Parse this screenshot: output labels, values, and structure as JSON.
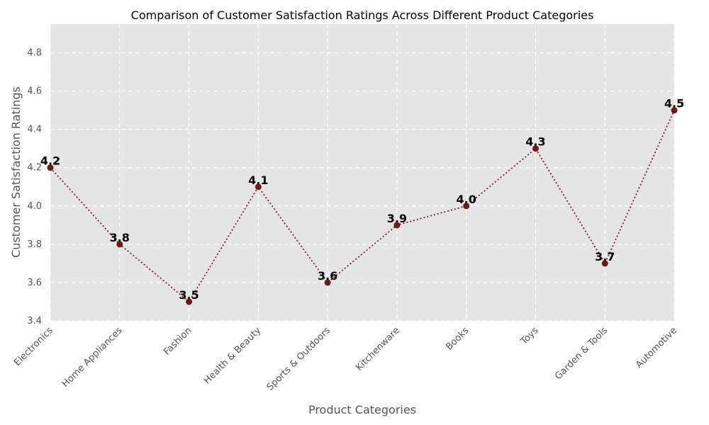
{
  "chart_data": {
    "type": "line",
    "title": "Comparison of Customer Satisfaction Ratings Across Different Product Categories",
    "xlabel": "Product Categories",
    "ylabel": "Customer Satisfaction Ratings",
    "categories": [
      "Electronics",
      "Home Appliances",
      "Fashion",
      "Health & Beauty",
      "Sports & Outdoors",
      "Kitchenware",
      "Books",
      "Toys",
      "Garden & Tools",
      "Automotive"
    ],
    "series": [
      {
        "values": [
          4.2,
          3.8,
          3.5,
          4.1,
          3.6,
          3.9,
          4.0,
          4.3,
          3.7,
          4.5
        ]
      }
    ],
    "data_labels": [
      "4.2",
      "3.8",
      "3.5",
      "4.1",
      "3.6",
      "3.9",
      "4.0",
      "4.3",
      "3.7",
      "4.5"
    ],
    "ylim": [
      3.4,
      4.95
    ],
    "yticks": [
      "3.4",
      "3.6",
      "3.8",
      "4.0",
      "4.2",
      "4.4",
      "4.6",
      "4.8"
    ],
    "grid": true,
    "line_style": "dotted",
    "colors": {
      "line": "#7a1f1f",
      "marker": "#6b1a1a",
      "plot_background": "#e5e5e5",
      "grid": "#ffffff"
    }
  }
}
